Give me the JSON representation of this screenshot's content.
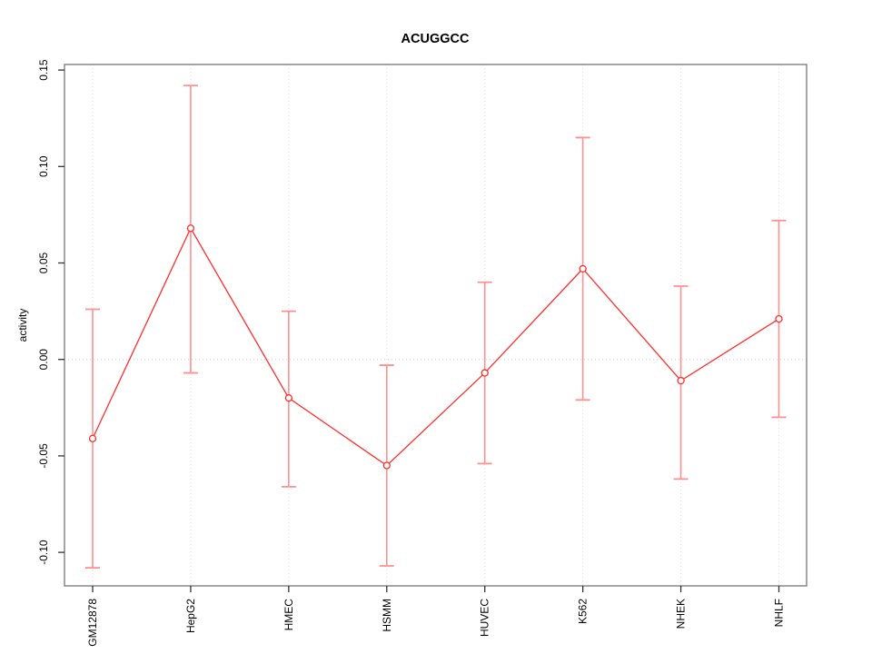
{
  "chart_data": {
    "type": "line",
    "title": "ACUGGCC",
    "xlabel": "",
    "ylabel": "activity",
    "categories": [
      "GM12878",
      "HepG2",
      "HMEC",
      "HSMM",
      "HUVEC",
      "K562",
      "NHEK",
      "NHLF"
    ],
    "series": [
      {
        "name": "activity",
        "values": [
          -0.041,
          0.068,
          -0.02,
          -0.055,
          -0.007,
          0.047,
          -0.011,
          0.021
        ],
        "upper": [
          0.026,
          0.142,
          0.025,
          -0.003,
          0.04,
          0.115,
          0.038,
          0.072
        ],
        "lower": [
          -0.108,
          -0.007,
          -0.066,
          -0.107,
          -0.054,
          -0.021,
          -0.062,
          -0.03
        ]
      }
    ],
    "yticks": [
      -0.1,
      -0.05,
      0.0,
      0.05,
      0.1,
      0.15
    ],
    "ytick_labels": [
      "-0.10",
      "-0.05",
      "0.00",
      "0.05",
      "0.10",
      "0.15"
    ],
    "ylim": [
      -0.118,
      0.152
    ],
    "legend": "none",
    "grid": {
      "horizontal_zero_line": true,
      "vertical_category_lines": true,
      "line_style": "dotted"
    },
    "marker": "open-circle",
    "colors": {
      "line": "#ff2d2d",
      "point": "#ff2d2d",
      "error_bar": "#ff9090",
      "grid": "#cccccc",
      "grid_vertical": "#dedede",
      "box": "#7f7f7f",
      "tick": "#333333",
      "text": "#000000"
    }
  }
}
